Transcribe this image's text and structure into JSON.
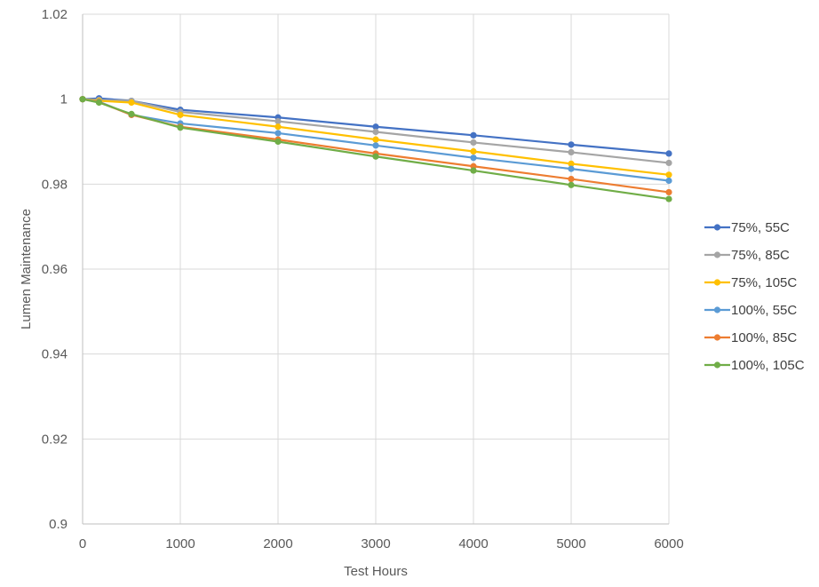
{
  "chart_data": {
    "type": "line",
    "title": "",
    "xlabel": "Test Hours",
    "ylabel": "Lumen Maintenance",
    "xlim": [
      0,
      6000
    ],
    "ylim": [
      0.9,
      1.02
    ],
    "x_ticks": [
      0,
      1000,
      2000,
      3000,
      4000,
      5000,
      6000
    ],
    "x_tick_labels": [
      "0",
      "1000",
      "2000",
      "3000",
      "4000",
      "5000",
      "6000"
    ],
    "y_ticks": [
      0.9,
      0.92,
      0.94,
      0.96,
      0.98,
      1.0,
      1.02
    ],
    "y_tick_labels": [
      "0.9",
      "0.92",
      "0.94",
      "0.96",
      "0.98",
      "1",
      "1.02"
    ],
    "grid": "vertical and horizontal",
    "legend_position": "right",
    "x": [
      0,
      168,
      500,
      1000,
      2000,
      3000,
      4000,
      5000,
      6000
    ],
    "series": [
      {
        "name": "75%, 55C",
        "color": "#4472C4",
        "values": [
          1.0,
          1.0002,
          0.9996,
          0.9975,
          0.9957,
          0.9935,
          0.9915,
          0.9893,
          0.9872
        ]
      },
      {
        "name": "75%, 85C",
        "color": "#A5A5A5",
        "values": [
          1.0,
          0.9998,
          0.9996,
          0.997,
          0.9948,
          0.9923,
          0.9898,
          0.9875,
          0.985
        ]
      },
      {
        "name": "75%, 105C",
        "color": "#FFC000",
        "values": [
          1.0,
          0.9996,
          0.9992,
          0.9963,
          0.9935,
          0.9905,
          0.9877,
          0.9848,
          0.9822
        ]
      },
      {
        "name": "100%, 55C",
        "color": "#5B9BD5",
        "values": [
          1.0,
          0.9994,
          0.9963,
          0.9943,
          0.992,
          0.9891,
          0.9862,
          0.9836,
          0.9808
        ]
      },
      {
        "name": "100%, 85C",
        "color": "#ED7D31",
        "values": [
          1.0,
          0.9993,
          0.9963,
          0.9935,
          0.9905,
          0.9872,
          0.9842,
          0.9812,
          0.9781
        ]
      },
      {
        "name": "100%, 105C",
        "color": "#70AD47",
        "values": [
          1.0,
          0.9992,
          0.9965,
          0.9933,
          0.99,
          0.9865,
          0.9832,
          0.9798,
          0.9765
        ]
      }
    ]
  }
}
